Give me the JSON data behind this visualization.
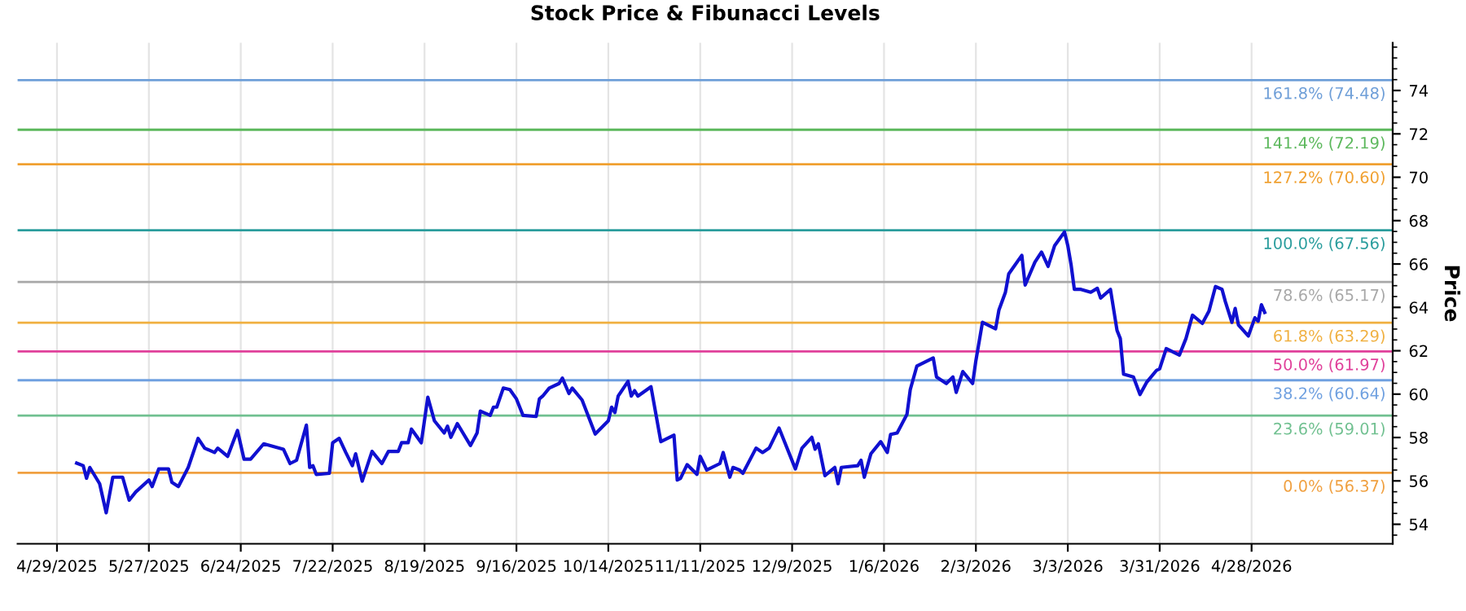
{
  "chart_data": {
    "type": "line",
    "title": "Stock Price & Fibunacci Levels",
    "ylabel": "Price",
    "xlim": [
      "2025-04-17",
      "2026-06-10"
    ],
    "ylim": [
      53.1,
      76.2
    ],
    "xticks": [
      {
        "value": "2025-04-29",
        "label": "4/29/2025"
      },
      {
        "value": "2025-05-27",
        "label": "5/27/2025"
      },
      {
        "value": "2025-06-24",
        "label": "6/24/2025"
      },
      {
        "value": "2025-07-22",
        "label": "7/22/2025"
      },
      {
        "value": "2025-08-19",
        "label": "8/19/2025"
      },
      {
        "value": "2025-09-16",
        "label": "9/16/2025"
      },
      {
        "value": "2025-10-14",
        "label": "10/14/2025"
      },
      {
        "value": "2025-11-11",
        "label": "11/11/2025"
      },
      {
        "value": "2025-12-09",
        "label": "12/9/2025"
      },
      {
        "value": "2026-01-06",
        "label": "1/6/2026"
      },
      {
        "value": "2026-02-03",
        "label": "2/3/2026"
      },
      {
        "value": "2026-03-03",
        "label": "3/3/2026"
      },
      {
        "value": "2026-03-31",
        "label": "3/31/2026"
      },
      {
        "value": "2026-04-28",
        "label": "4/28/2026"
      }
    ],
    "yticks": [
      54,
      56,
      58,
      60,
      62,
      64,
      66,
      68,
      70,
      72,
      74
    ],
    "grid": "x",
    "marker": "none",
    "line_style": "solid",
    "x": [
      "2025-05-05",
      "2025-05-07",
      "2025-05-08",
      "2025-05-09",
      "2025-05-12",
      "2025-05-14",
      "2025-05-16",
      "2025-05-19",
      "2025-05-21",
      "2025-05-23",
      "2025-05-27",
      "2025-05-28",
      "2025-05-30",
      "2025-06-02",
      "2025-06-03",
      "2025-06-05",
      "2025-06-08",
      "2025-06-11",
      "2025-06-13",
      "2025-06-16",
      "2025-06-17",
      "2025-06-20",
      "2025-06-23",
      "2025-06-25",
      "2025-06-27",
      "2025-07-01",
      "2025-07-07",
      "2025-07-09",
      "2025-07-11",
      "2025-07-14",
      "2025-07-15",
      "2025-07-16",
      "2025-07-17",
      "2025-07-21",
      "2025-07-22",
      "2025-07-24",
      "2025-07-26",
      "2025-07-28",
      "2025-07-29",
      "2025-07-31",
      "2025-08-03",
      "2025-08-06",
      "2025-08-08",
      "2025-08-11",
      "2025-08-12",
      "2025-08-14",
      "2025-08-15",
      "2025-08-18",
      "2025-08-20",
      "2025-08-22",
      "2025-08-25",
      "2025-08-26",
      "2025-08-27",
      "2025-08-29",
      "2025-09-02",
      "2025-09-04",
      "2025-09-05",
      "2025-09-08",
      "2025-09-09",
      "2025-09-10",
      "2025-09-12",
      "2025-09-14",
      "2025-09-16",
      "2025-09-18",
      "2025-09-22",
      "2025-09-23",
      "2025-09-24",
      "2025-09-26",
      "2025-09-29",
      "2025-09-30",
      "2025-10-02",
      "2025-10-03",
      "2025-10-06",
      "2025-10-10",
      "2025-10-14",
      "2025-10-15",
      "2025-10-16",
      "2025-10-17",
      "2025-10-20",
      "2025-10-21",
      "2025-10-22",
      "2025-10-23",
      "2025-10-27",
      "2025-10-30",
      "2025-11-03",
      "2025-11-04",
      "2025-11-05",
      "2025-11-07",
      "2025-11-10",
      "2025-11-11",
      "2025-11-13",
      "2025-11-17",
      "2025-11-18",
      "2025-11-20",
      "2025-11-21",
      "2025-11-23",
      "2025-11-24",
      "2025-11-28",
      "2025-11-30",
      "2025-12-02",
      "2025-12-05",
      "2025-12-10",
      "2025-12-12",
      "2025-12-15",
      "2025-12-16",
      "2025-12-17",
      "2025-12-19",
      "2025-12-22",
      "2025-12-23",
      "2025-12-24",
      "2025-12-29",
      "2025-12-30",
      "2025-12-31",
      "2026-01-02",
      "2026-01-05",
      "2026-01-07",
      "2026-01-08",
      "2026-01-10",
      "2026-01-13",
      "2026-01-14",
      "2026-01-16",
      "2026-01-21",
      "2026-01-22",
      "2026-01-25",
      "2026-01-27",
      "2026-01-28",
      "2026-01-30",
      "2026-02-02",
      "2026-02-03",
      "2026-02-05",
      "2026-02-09",
      "2026-02-10",
      "2026-02-12",
      "2026-02-13",
      "2026-02-17",
      "2026-02-18",
      "2026-02-21",
      "2026-02-23",
      "2026-02-25",
      "2026-02-27",
      "2026-03-02",
      "2026-03-03",
      "2026-03-04",
      "2026-03-05",
      "2026-03-07",
      "2026-03-10",
      "2026-03-12",
      "2026-03-13",
      "2026-03-16",
      "2026-03-18",
      "2026-03-19",
      "2026-03-20",
      "2026-03-23",
      "2026-03-25",
      "2026-03-27",
      "2026-03-30",
      "2026-03-31",
      "2026-04-02",
      "2026-04-06",
      "2026-04-08",
      "2026-04-10",
      "2026-04-13",
      "2026-04-15",
      "2026-04-17",
      "2026-04-19",
      "2026-04-20",
      "2026-04-22",
      "2026-04-23",
      "2026-04-24",
      "2026-04-27",
      "2026-04-29",
      "2026-04-30",
      "2026-05-01",
      "2026-05-02"
    ],
    "series": [
      {
        "color": "#1010d0",
        "values": [
          56.82,
          56.7,
          56.12,
          56.62,
          55.87,
          54.53,
          56.17,
          56.17,
          55.11,
          55.49,
          56.04,
          55.74,
          56.55,
          56.55,
          55.94,
          55.74,
          56.62,
          57.96,
          57.51,
          57.31,
          57.51,
          57.13,
          58.32,
          57.0,
          57.0,
          57.71,
          57.46,
          56.8,
          56.95,
          58.57,
          56.62,
          56.7,
          56.3,
          56.35,
          57.76,
          57.96,
          57.31,
          56.7,
          57.25,
          55.99,
          57.36,
          56.8,
          57.36,
          57.36,
          57.76,
          57.76,
          58.39,
          57.76,
          59.86,
          58.77,
          58.21,
          58.52,
          58.01,
          58.64,
          57.63,
          58.21,
          59.22,
          59.02,
          59.4,
          59.4,
          60.28,
          60.21,
          59.78,
          59.02,
          58.97,
          59.78,
          59.91,
          60.28,
          60.49,
          60.74,
          60.03,
          60.28,
          59.73,
          58.16,
          58.77,
          59.4,
          59.15,
          59.91,
          60.59,
          59.91,
          60.16,
          59.91,
          60.34,
          57.81,
          58.11,
          56.04,
          56.12,
          56.75,
          56.3,
          57.13,
          56.5,
          56.8,
          57.31,
          56.17,
          56.62,
          56.5,
          56.35,
          57.51,
          57.31,
          57.51,
          58.44,
          56.55,
          57.51,
          58.01,
          57.46,
          57.71,
          56.24,
          56.62,
          55.87,
          56.62,
          56.7,
          56.95,
          56.17,
          57.25,
          57.81,
          57.31,
          58.14,
          58.21,
          59.07,
          60.21,
          61.29,
          61.67,
          60.79,
          60.49,
          60.79,
          60.08,
          61.04,
          60.49,
          61.55,
          63.31,
          63.01,
          63.87,
          64.7,
          65.54,
          66.4,
          65.03,
          66.09,
          66.55,
          65.89,
          66.85,
          67.48,
          66.85,
          65.97,
          64.83,
          64.83,
          64.7,
          64.88,
          64.43,
          64.83,
          62.94,
          62.56,
          60.92,
          60.79,
          59.98,
          60.54,
          61.09,
          61.17,
          62.1,
          61.8,
          62.56,
          63.64,
          63.26,
          63.82,
          64.96,
          64.83,
          64.27,
          63.31,
          63.95,
          63.19,
          62.68,
          63.52,
          63.36,
          64.12,
          63.77
        ]
      }
    ],
    "ref_lines": [
      {
        "axis": "y",
        "value": 74.48,
        "label": "161.8% (74.48)",
        "color": "#6f9fd8"
      },
      {
        "axis": "y",
        "value": 72.19,
        "label": "141.4% (72.19)",
        "color": "#5cb85c"
      },
      {
        "axis": "y",
        "value": 70.6,
        "label": "127.2% (70.60)",
        "color": "#f0a030"
      },
      {
        "axis": "y",
        "value": 67.56,
        "label": "100.0% (67.56)",
        "color": "#2a9d9d"
      },
      {
        "axis": "y",
        "value": 65.17,
        "label": "78.6% (65.17)",
        "color": "#a8a8a8"
      },
      {
        "axis": "y",
        "value": 63.29,
        "label": "61.8% (63.29)",
        "color": "#f0b040"
      },
      {
        "axis": "y",
        "value": 61.97,
        "label": "50.0% (61.97)",
        "color": "#e0409a"
      },
      {
        "axis": "y",
        "value": 60.64,
        "label": "38.2% (60.64)",
        "color": "#6fa0e0"
      },
      {
        "axis": "y",
        "value": 59.01,
        "label": "23.6% (59.01)",
        "color": "#70c090"
      },
      {
        "axis": "y",
        "value": 56.37,
        "label": "0.0% (56.37)",
        "color": "#f0a040"
      }
    ]
  }
}
